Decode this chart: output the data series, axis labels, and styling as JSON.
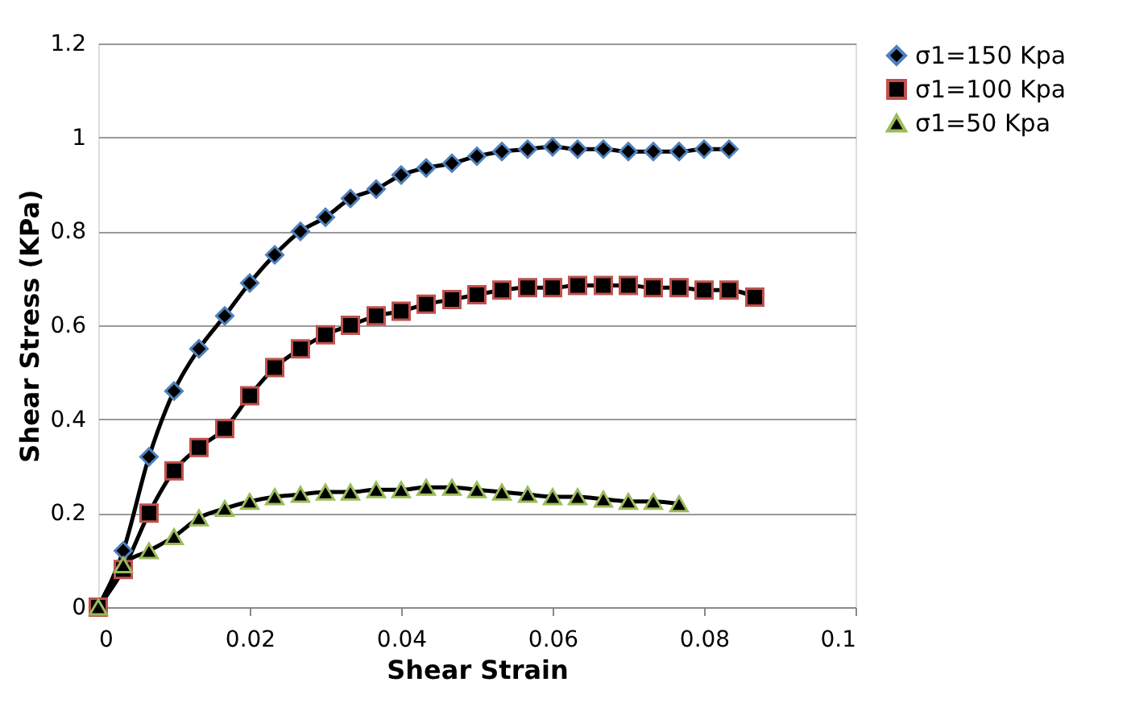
{
  "chart_data": {
    "type": "line",
    "xlabel": "Shear Strain",
    "ylabel": "Shear Stress (KPa)",
    "xlim": [
      0,
      0.1
    ],
    "xticks": [
      0,
      0.02,
      0.04,
      0.06,
      0.08,
      0.1
    ],
    "ylim": [
      0,
      1.2
    ],
    "yticks": [
      0,
      0.2,
      0.4,
      0.6,
      0.8,
      1,
      1.2
    ],
    "grid": "y",
    "legend": "right",
    "line_style": "solid",
    "series": [
      {
        "name": "σ1=150 Kpa",
        "color": "#4f81bd",
        "marker": "diamond",
        "x": [
          0,
          0.0033,
          0.0067,
          0.01,
          0.0133,
          0.0167,
          0.02,
          0.0233,
          0.0267,
          0.03,
          0.0333,
          0.0367,
          0.04,
          0.0433,
          0.0467,
          0.05,
          0.0533,
          0.0567,
          0.06,
          0.0633,
          0.0667,
          0.07,
          0.0733,
          0.0767,
          0.08,
          0.0833
        ],
        "values": [
          0,
          0.12,
          0.32,
          0.46,
          0.55,
          0.62,
          0.69,
          0.75,
          0.8,
          0.83,
          0.87,
          0.89,
          0.92,
          0.935,
          0.945,
          0.96,
          0.97,
          0.975,
          0.98,
          0.975,
          0.975,
          0.97,
          0.97,
          0.97,
          0.975,
          0.975
        ]
      },
      {
        "name": "σ1=100 Kpa",
        "color": "#c0504d",
        "marker": "square",
        "x": [
          0,
          0.0033,
          0.0067,
          0.01,
          0.0133,
          0.0167,
          0.02,
          0.0233,
          0.0267,
          0.03,
          0.0333,
          0.0367,
          0.04,
          0.0433,
          0.0467,
          0.05,
          0.0533,
          0.0567,
          0.06,
          0.0633,
          0.0667,
          0.07,
          0.0733,
          0.0767,
          0.08,
          0.0833,
          0.0867
        ],
        "values": [
          0,
          0.08,
          0.2,
          0.29,
          0.34,
          0.38,
          0.45,
          0.51,
          0.55,
          0.58,
          0.6,
          0.62,
          0.63,
          0.645,
          0.655,
          0.665,
          0.675,
          0.68,
          0.68,
          0.685,
          0.685,
          0.685,
          0.68,
          0.68,
          0.675,
          0.675,
          0.66
        ]
      },
      {
        "name": "σ1=50 Kpa",
        "color": "#9bbb59",
        "marker": "triangle",
        "x": [
          0,
          0.0033,
          0.0067,
          0.01,
          0.0133,
          0.0167,
          0.02,
          0.0233,
          0.0267,
          0.03,
          0.0333,
          0.0367,
          0.04,
          0.0433,
          0.0467,
          0.05,
          0.0533,
          0.0567,
          0.06,
          0.0633,
          0.0667,
          0.07,
          0.0733,
          0.0767
        ],
        "values": [
          0,
          0.09,
          0.12,
          0.15,
          0.19,
          0.21,
          0.225,
          0.235,
          0.24,
          0.245,
          0.245,
          0.25,
          0.25,
          0.255,
          0.255,
          0.25,
          0.245,
          0.24,
          0.235,
          0.235,
          0.23,
          0.225,
          0.225,
          0.22
        ]
      }
    ]
  }
}
